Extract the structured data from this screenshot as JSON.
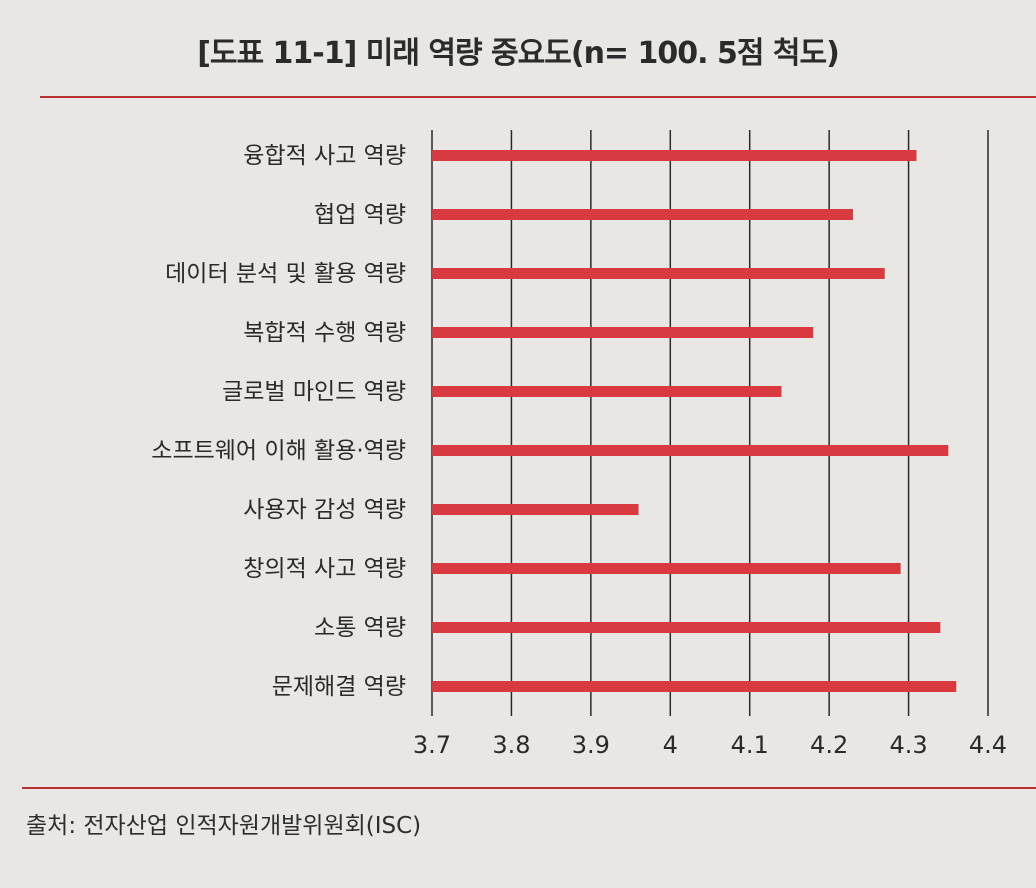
{
  "title": "[도표 11-1] 미래 역량 중요도(n= 100. 5점 척도)",
  "source": "출처: 전자산업 인적자원개발위원회(ISC)",
  "colors": {
    "bar": "#d83a40",
    "rule": "#b8322f",
    "grid": "#2a2a2a"
  },
  "chart_data": {
    "type": "bar",
    "orientation": "horizontal",
    "title": "[도표 11-1] 미래 역량 중요도(n= 100. 5점 척도)",
    "categories": [
      "융합적 사고 역량",
      "협업 역량",
      "데이터 분석 및 활용 역량",
      "복합적 수행 역량",
      "글로벌 마인드 역량",
      "소프트웨어 이해 활용·역량",
      "사용자 감성 역량",
      "창의적 사고 역량",
      "소통 역량",
      "문제해결 역량"
    ],
    "values": [
      4.31,
      4.23,
      4.27,
      4.18,
      4.14,
      4.35,
      3.96,
      4.29,
      4.34,
      4.36
    ],
    "xlim": [
      3.7,
      4.4
    ],
    "ticks": [
      "3.7",
      "3.8",
      "3.9",
      "4",
      "4.1",
      "4.2",
      "4.3",
      "4.4"
    ],
    "grid": true,
    "xlabel": "",
    "ylabel": ""
  }
}
